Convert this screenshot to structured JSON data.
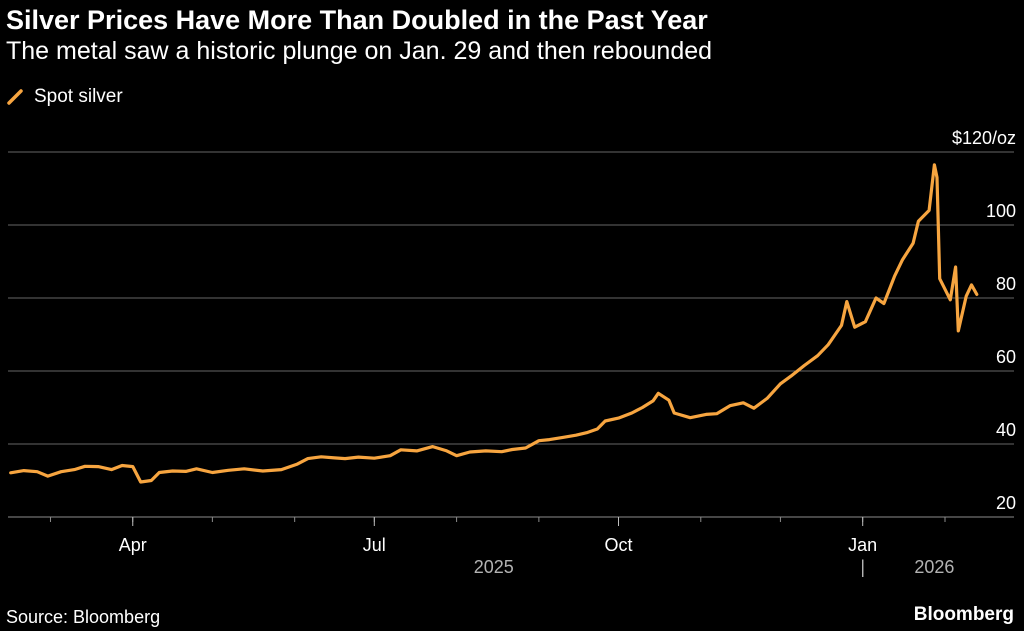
{
  "header": {
    "title": "Silver Prices Have More Than Doubled in the Past Year",
    "subtitle": "The metal saw a historic plunge on Jan. 29 and then rebounded"
  },
  "footer": {
    "source": "Source: Bloomberg",
    "brand": "Bloomberg"
  },
  "colors": {
    "series": "#f7a540",
    "gridline": "#666666",
    "background": "#000000"
  },
  "chart_data": {
    "type": "line",
    "title": "Silver Prices Have More Than Doubled in the Past Year",
    "subtitle": "The metal saw a historic plunge on Jan. 29 and then rebounded",
    "xlabel": "",
    "ylabel": "",
    "ylim": [
      20,
      120
    ],
    "xlim": [
      "2025-02-13",
      "2026-02-27"
    ],
    "y_ticks": [
      {
        "value": 120,
        "label": "$120/oz"
      },
      {
        "value": 100,
        "label": "100"
      },
      {
        "value": 80,
        "label": "80"
      },
      {
        "value": 60,
        "label": "60"
      },
      {
        "value": 40,
        "label": "40"
      },
      {
        "value": 20,
        "label": "20"
      }
    ],
    "x_ticks": [
      {
        "date": "2025-04-01",
        "label": "Apr"
      },
      {
        "date": "2025-07-01",
        "label": "Jul"
      },
      {
        "date": "2025-10-01",
        "label": "Oct"
      },
      {
        "date": "2026-01-01",
        "label": "Jan"
      }
    ],
    "year_labels": [
      {
        "date": "2025-08-15",
        "label": "2025"
      },
      {
        "date": "2026-01-28",
        "label": "2026"
      }
    ],
    "year_divider": "|",
    "grid": true,
    "legend": "top-left",
    "series": [
      {
        "name": "Spot silver",
        "color": "#f7a540",
        "points": [
          [
            "2025-02-14",
            32.1
          ],
          [
            "2025-02-19",
            32.7
          ],
          [
            "2025-02-24",
            32.4
          ],
          [
            "2025-02-28",
            31.2
          ],
          [
            "2025-03-05",
            32.4
          ],
          [
            "2025-03-10",
            33.0
          ],
          [
            "2025-03-14",
            33.9
          ],
          [
            "2025-03-19",
            33.8
          ],
          [
            "2025-03-24",
            33.0
          ],
          [
            "2025-03-28",
            34.1
          ],
          [
            "2025-04-01",
            33.8
          ],
          [
            "2025-04-04",
            29.6
          ],
          [
            "2025-04-08",
            30.0
          ],
          [
            "2025-04-11",
            32.2
          ],
          [
            "2025-04-16",
            32.6
          ],
          [
            "2025-04-21",
            32.5
          ],
          [
            "2025-04-25",
            33.2
          ],
          [
            "2025-05-01",
            32.2
          ],
          [
            "2025-05-07",
            32.8
          ],
          [
            "2025-05-13",
            33.2
          ],
          [
            "2025-05-20",
            32.6
          ],
          [
            "2025-05-27",
            33.0
          ],
          [
            "2025-06-02",
            34.5
          ],
          [
            "2025-06-06",
            36.0
          ],
          [
            "2025-06-11",
            36.5
          ],
          [
            "2025-06-16",
            36.2
          ],
          [
            "2025-06-20",
            36.0
          ],
          [
            "2025-06-25",
            36.4
          ],
          [
            "2025-07-01",
            36.1
          ],
          [
            "2025-07-07",
            36.8
          ],
          [
            "2025-07-11",
            38.4
          ],
          [
            "2025-07-17",
            38.1
          ],
          [
            "2025-07-23",
            39.3
          ],
          [
            "2025-07-28",
            38.2
          ],
          [
            "2025-08-01",
            36.8
          ],
          [
            "2025-08-06",
            37.8
          ],
          [
            "2025-08-12",
            38.1
          ],
          [
            "2025-08-18",
            37.9
          ],
          [
            "2025-08-22",
            38.5
          ],
          [
            "2025-08-27",
            38.9
          ],
          [
            "2025-09-01",
            40.9
          ],
          [
            "2025-09-05",
            41.2
          ],
          [
            "2025-09-10",
            41.8
          ],
          [
            "2025-09-15",
            42.4
          ],
          [
            "2025-09-19",
            43.1
          ],
          [
            "2025-09-23",
            44.1
          ],
          [
            "2025-09-26",
            46.3
          ],
          [
            "2025-10-01",
            47.1
          ],
          [
            "2025-10-06",
            48.5
          ],
          [
            "2025-10-10",
            50.0
          ],
          [
            "2025-10-14",
            51.8
          ],
          [
            "2025-10-16",
            53.9
          ],
          [
            "2025-10-20",
            52.0
          ],
          [
            "2025-10-22",
            48.5
          ],
          [
            "2025-10-28",
            47.2
          ],
          [
            "2025-11-03",
            48.1
          ],
          [
            "2025-11-07",
            48.3
          ],
          [
            "2025-11-12",
            50.5
          ],
          [
            "2025-11-17",
            51.3
          ],
          [
            "2025-11-21",
            49.8
          ],
          [
            "2025-11-26",
            52.5
          ],
          [
            "2025-12-01",
            56.5
          ],
          [
            "2025-12-05",
            58.6
          ],
          [
            "2025-12-10",
            61.5
          ],
          [
            "2025-12-15",
            64.2
          ],
          [
            "2025-12-19",
            67.2
          ],
          [
            "2025-12-24",
            72.5
          ],
          [
            "2025-12-26",
            79.0
          ],
          [
            "2025-12-29",
            72.0
          ],
          [
            "2026-01-02",
            73.5
          ],
          [
            "2026-01-06",
            80.0
          ],
          [
            "2026-01-09",
            78.5
          ],
          [
            "2026-01-13",
            86.0
          ],
          [
            "2026-01-16",
            90.5
          ],
          [
            "2026-01-20",
            95.0
          ],
          [
            "2026-01-22",
            101.0
          ],
          [
            "2026-01-26",
            104.0
          ],
          [
            "2026-01-28",
            116.5
          ],
          [
            "2026-01-29",
            113.0
          ],
          [
            "2026-01-30",
            85.3
          ],
          [
            "2026-02-03",
            79.5
          ],
          [
            "2026-02-05",
            88.5
          ],
          [
            "2026-02-06",
            71.0
          ],
          [
            "2026-02-09",
            80.5
          ],
          [
            "2026-02-11",
            83.6
          ],
          [
            "2026-02-13",
            81.0
          ]
        ]
      }
    ]
  }
}
